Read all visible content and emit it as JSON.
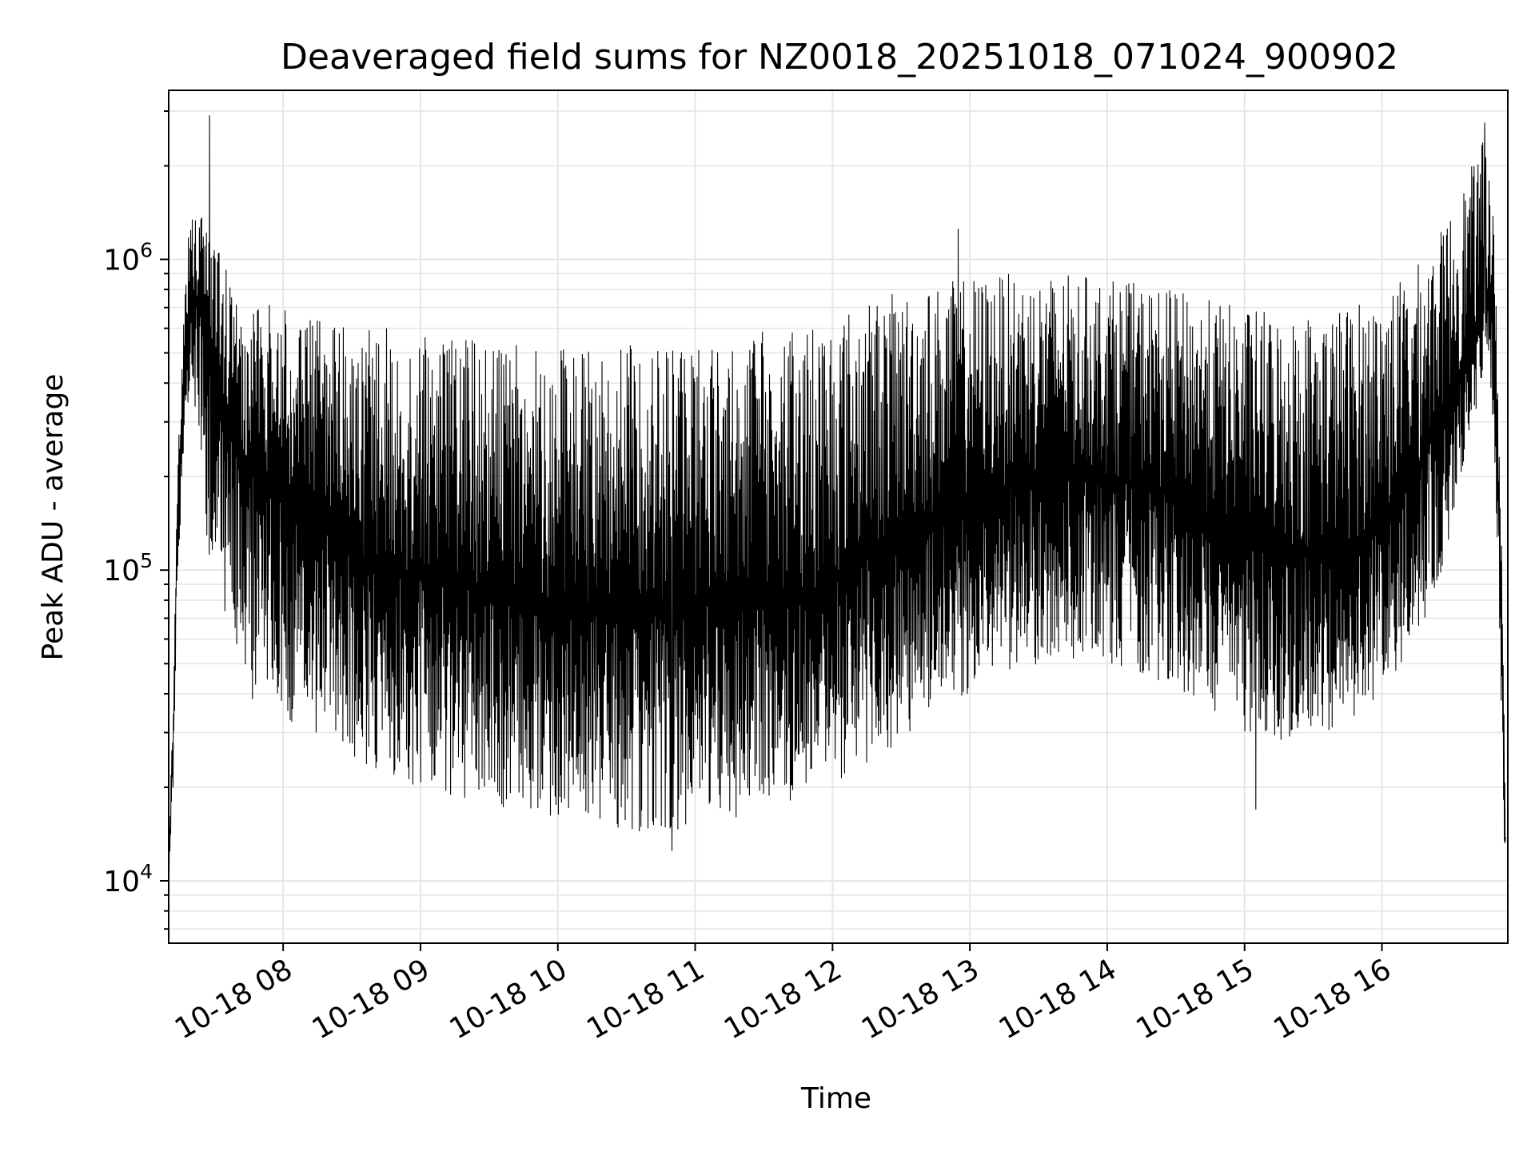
{
  "chart_data": {
    "type": "line",
    "title": "Deaveraged field sums for NZ0018_20251018_071024_900902",
    "xlabel": "Time",
    "ylabel": "Peak ADU - average",
    "yscale": "log",
    "ylim": [
      6300,
      3500000
    ],
    "xlim": [
      "2025-10-18 07:10",
      "2025-10-18 16:55"
    ],
    "grid": true,
    "legend": "none",
    "colors": {
      "line": "#000000",
      "grid": "#e6e6e6",
      "background": "#ffffff"
    },
    "x_ticks": [
      {
        "t": "2025-10-18 08:00",
        "label": "10-18 08"
      },
      {
        "t": "2025-10-18 09:00",
        "label": "10-18 09"
      },
      {
        "t": "2025-10-18 10:00",
        "label": "10-18 10"
      },
      {
        "t": "2025-10-18 11:00",
        "label": "10-18 11"
      },
      {
        "t": "2025-10-18 12:00",
        "label": "10-18 12"
      },
      {
        "t": "2025-10-18 13:00",
        "label": "10-18 13"
      },
      {
        "t": "2025-10-18 14:00",
        "label": "10-18 14"
      },
      {
        "t": "2025-10-18 15:00",
        "label": "10-18 15"
      },
      {
        "t": "2025-10-18 16:00",
        "label": "10-18 16"
      }
    ],
    "y_ticks": [
      {
        "value": 10000,
        "base": "10",
        "exp": "4"
      },
      {
        "value": 100000,
        "base": "10",
        "exp": "5"
      },
      {
        "value": 1000000,
        "base": "10",
        "exp": "6"
      }
    ],
    "series": [
      {
        "x": [
          "2025-10-18 07:10",
          "2025-10-18 07:12",
          "2025-10-18 07:14",
          "2025-10-18 07:17",
          "2025-10-18 07:20",
          "2025-10-18 07:24",
          "2025-10-18 07:28",
          "2025-10-18 07:32",
          "2025-10-18 07:36",
          "2025-10-18 07:40",
          "2025-10-18 07:45",
          "2025-10-18 07:50",
          "2025-10-18 08:00",
          "2025-10-18 08:15",
          "2025-10-18 08:30",
          "2025-10-18 08:45",
          "2025-10-18 09:00",
          "2025-10-18 09:20",
          "2025-10-18 09:40",
          "2025-10-18 10:00",
          "2025-10-18 10:20",
          "2025-10-18 10:40",
          "2025-10-18 11:00",
          "2025-10-18 11:20",
          "2025-10-18 11:40",
          "2025-10-18 12:00",
          "2025-10-18 12:20",
          "2025-10-18 12:40",
          "2025-10-18 13:00",
          "2025-10-18 13:20",
          "2025-10-18 13:40",
          "2025-10-18 14:00",
          "2025-10-18 14:20",
          "2025-10-18 14:40",
          "2025-10-18 15:00",
          "2025-10-18 15:20",
          "2025-10-18 15:40",
          "2025-10-18 16:00",
          "2025-10-18 16:15",
          "2025-10-18 16:25",
          "2025-10-18 16:35",
          "2025-10-18 16:42",
          "2025-10-18 16:46",
          "2025-10-18 16:48",
          "2025-10-18 16:50",
          "2025-10-18 16:52",
          "2025-10-18 16:54"
        ],
        "center": [
          11000,
          30000,
          150000,
          500000,
          800000,
          700000,
          550000,
          420000,
          300000,
          260000,
          220000,
          190000,
          170000,
          140000,
          115000,
          100000,
          95000,
          88000,
          84000,
          80000,
          78000,
          78000,
          80000,
          80000,
          78000,
          90000,
          115000,
          140000,
          170000,
          190000,
          200000,
          200000,
          185000,
          155000,
          125000,
          110000,
          115000,
          135000,
          200000,
          300000,
          450000,
          600000,
          800000,
          700000,
          300000,
          90000,
          12000
        ],
        "low": [
          10000,
          20000,
          90000,
          300000,
          400000,
          200000,
          100000,
          70000,
          50000,
          45000,
          40000,
          35000,
          32000,
          28000,
          24000,
          22000,
          20000,
          18000,
          17000,
          16000,
          15000,
          14000,
          15000,
          16000,
          18000,
          20000,
          25000,
          32000,
          40000,
          48000,
          52000,
          50000,
          45000,
          38000,
          30000,
          28000,
          30000,
          40000,
          60000,
          90000,
          200000,
          350000,
          500000,
          350000,
          150000,
          40000,
          8500
        ],
        "high": [
          12000,
          40000,
          220000,
          900000,
          1500000,
          1400000,
          1200000,
          1050000,
          900000,
          850000,
          800000,
          750000,
          700000,
          650000,
          600000,
          600000,
          580000,
          560000,
          550000,
          530000,
          520000,
          540000,
          560000,
          580000,
          600000,
          680000,
          760000,
          820000,
          880000,
          900000,
          900000,
          870000,
          820000,
          760000,
          700000,
          680000,
          700000,
          780000,
          950000,
          1200000,
          1700000,
          2200000,
          2600000,
          1900000,
          700000,
          200000,
          16000
        ],
        "spikes": [
          {
            "t": "2025-10-18 07:28",
            "value": 2900000
          },
          {
            "t": "2025-10-18 12:55",
            "value": 1250000
          },
          {
            "t": "2025-10-18 16:45",
            "value": 2750000
          },
          {
            "t": "2025-10-18 10:50",
            "value": 12500
          },
          {
            "t": "2025-10-18 15:05",
            "value": 17000
          }
        ]
      }
    ]
  }
}
